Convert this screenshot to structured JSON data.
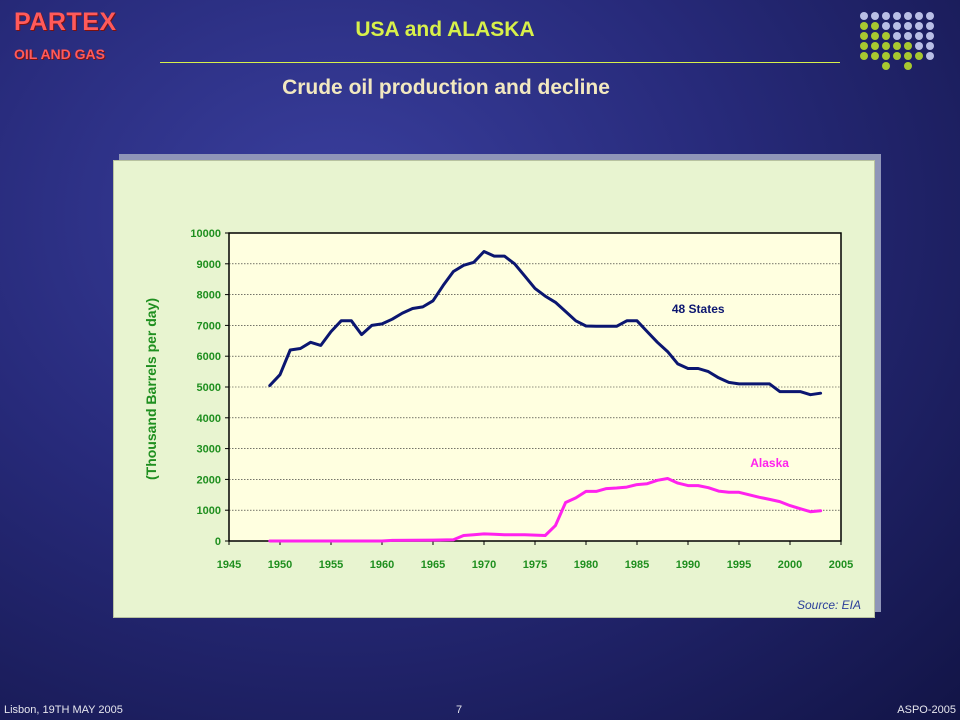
{
  "logo": {
    "main": "PARTEX",
    "sub": "OIL AND GAS"
  },
  "header": {
    "title": "USA and ALASKA",
    "subtitle": "Crude oil production and decline"
  },
  "footer": {
    "left": "Lisbon, 19TH MAY 2005",
    "page": "7",
    "right": "ASPO-2005"
  },
  "colors": {
    "title": "#d8f04a",
    "logo": "#ff5a5a",
    "plot_bg": "#ffffe0",
    "series_48_states": "#0b1670",
    "series_alaska": "#ff22ee",
    "axis_labels": "#1f8f1f"
  },
  "chart_data": {
    "type": "line",
    "title": "",
    "xlabel": "",
    "ylabel": "(Thousand Barrels per day)",
    "xlim": [
      1945,
      2005
    ],
    "ylim": [
      0,
      10000
    ],
    "xticks": [
      "1945",
      "1950",
      "1955",
      "1960",
      "1965",
      "1970",
      "1975",
      "1980",
      "1985",
      "1990",
      "1995",
      "2000",
      "2005"
    ],
    "yticks": [
      "0",
      "1000",
      "2000",
      "3000",
      "4000",
      "5000",
      "6000",
      "7000",
      "8000",
      "9000",
      "10000"
    ],
    "grid": "horizontal-dashed",
    "source": "Source: EIA",
    "series": [
      {
        "name": "48 States",
        "x": [
          1949,
          1950,
          1951,
          1952,
          1953,
          1954,
          1955,
          1956,
          1957,
          1958,
          1959,
          1960,
          1961,
          1962,
          1963,
          1964,
          1965,
          1966,
          1967,
          1968,
          1969,
          1970,
          1971,
          1972,
          1973,
          1974,
          1975,
          1976,
          1977,
          1978,
          1979,
          1980,
          1981,
          1982,
          1983,
          1984,
          1985,
          1986,
          1987,
          1988,
          1989,
          1990,
          1991,
          1992,
          1993,
          1994,
          1995,
          1996,
          1997,
          1998,
          1999,
          2000,
          2001,
          2002,
          2003
        ],
        "values": [
          5050,
          5400,
          6200,
          6250,
          6450,
          6350,
          6800,
          7150,
          7150,
          6700,
          7000,
          7050,
          7200,
          7400,
          7550,
          7600,
          7800,
          8300,
          8750,
          8950,
          9050,
          9400,
          9250,
          9250,
          9000,
          8600,
          8200,
          7950,
          7750,
          7450,
          7150,
          6980,
          6970,
          6970,
          6970,
          7150,
          7150,
          6800,
          6450,
          6150,
          5750,
          5600,
          5600,
          5500,
          5300,
          5150,
          5100,
          5100,
          5100,
          5100,
          4850,
          4850,
          4850,
          4750,
          4800
        ]
      },
      {
        "name": "Alaska",
        "x": [
          1949,
          1955,
          1960,
          1961,
          1965,
          1967,
          1968,
          1969,
          1970,
          1971,
          1972,
          1973,
          1974,
          1975,
          1976,
          1977,
          1978,
          1979,
          1980,
          1981,
          1982,
          1983,
          1984,
          1985,
          1986,
          1987,
          1988,
          1989,
          1990,
          1991,
          1992,
          1993,
          1994,
          1995,
          1996,
          1997,
          1998,
          1999,
          2000,
          2001,
          2002,
          2003
        ],
        "values": [
          0,
          0,
          0,
          20,
          30,
          40,
          180,
          200,
          230,
          220,
          200,
          200,
          200,
          190,
          180,
          500,
          1250,
          1400,
          1610,
          1610,
          1700,
          1720,
          1750,
          1830,
          1860,
          1970,
          2030,
          1880,
          1800,
          1800,
          1730,
          1620,
          1580,
          1580,
          1500,
          1420,
          1350,
          1280,
          1150,
          1050,
          950,
          980
        ]
      }
    ],
    "annotations": [
      {
        "text": "48 States",
        "x": 1991,
        "y": 7400
      },
      {
        "text": "Alaska",
        "x": 1998,
        "y": 2400
      }
    ]
  }
}
